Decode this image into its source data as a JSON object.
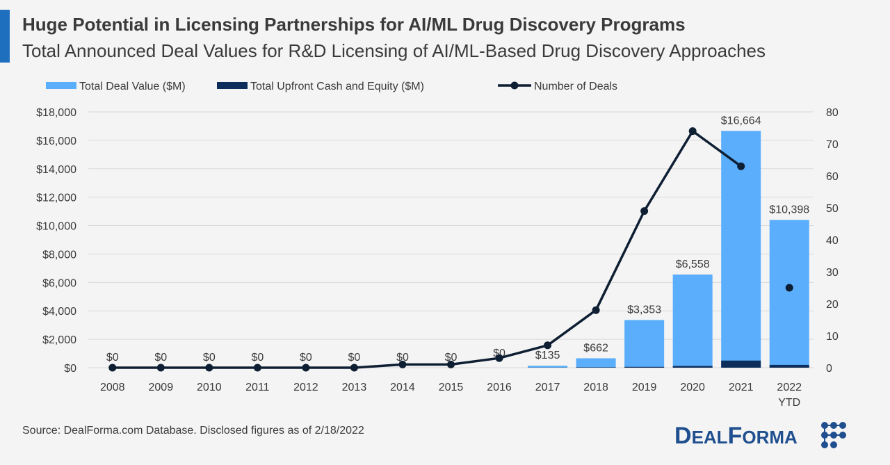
{
  "header": {
    "title": "Huge Potential in Licensing Partnerships for AI/ML Drug Discovery Programs",
    "subtitle": "Total Announced Deal Values for R&D Licensing of AI/ML-Based Drug Discovery Approaches"
  },
  "colors": {
    "light_bar": "#5aaefc",
    "dark_bar": "#0d2d5a",
    "line": "#0e1f33",
    "accent": "#1f6fbf",
    "grid": "#d9d9d9"
  },
  "chart_data": {
    "type": "bar",
    "categories": [
      "2008",
      "2009",
      "2010",
      "2011",
      "2012",
      "2013",
      "2014",
      "2015",
      "2016",
      "2017",
      "2018",
      "2019",
      "2020",
      "2021",
      "2022"
    ],
    "category_sublabels": [
      "",
      "",
      "",
      "",
      "",
      "",
      "",
      "",
      "",
      "",
      "",
      "",
      "",
      "",
      "YTD"
    ],
    "series": [
      {
        "name": "Total Deal Value ($M)",
        "type": "bar",
        "axis": "left",
        "values": [
          0,
          0,
          0,
          0,
          0,
          0,
          0,
          0,
          0,
          135,
          662,
          3353,
          6558,
          16664,
          10398
        ]
      },
      {
        "name": "Total Upfront Cash and Equity ($M)",
        "type": "bar",
        "axis": "left",
        "values": [
          0,
          0,
          0,
          0,
          0,
          0,
          0,
          0,
          0,
          10,
          30,
          60,
          120,
          500,
          200
        ]
      },
      {
        "name": "Number of Deals",
        "type": "line",
        "axis": "right",
        "values": [
          0,
          0,
          0,
          0,
          0,
          0,
          1,
          1,
          3,
          7,
          18,
          49,
          74,
          63,
          25
        ],
        "connected_until_index": 13
      }
    ],
    "data_labels": [
      "$0",
      "$0",
      "$0",
      "$0",
      "$0",
      "$0",
      "$0",
      "$0",
      "$0",
      "$135",
      "$662",
      "$3,353",
      "$6,558",
      "$16,664",
      "$10,398"
    ],
    "ylim_left": [
      0,
      18000
    ],
    "yticks_left": [
      "$0",
      "$2,000",
      "$4,000",
      "$6,000",
      "$8,000",
      "$10,000",
      "$12,000",
      "$14,000",
      "$16,000",
      "$18,000"
    ],
    "ylim_right": [
      0,
      80
    ],
    "yticks_right": [
      "0",
      "10",
      "20",
      "30",
      "40",
      "50",
      "60",
      "70",
      "80"
    ],
    "legend": [
      {
        "label": "Total Deal Value ($M)",
        "kind": "bar-light"
      },
      {
        "label": "Total Upfront Cash and Equity ($M)",
        "kind": "bar-dark"
      },
      {
        "label": "Number of Deals",
        "kind": "line"
      }
    ],
    "legend_position": "top-left",
    "grid": true
  },
  "footer": {
    "source": "Source: DealForma.com Database. Disclosed figures as of 2/18/2022",
    "brand_big1": "D",
    "brand_small1": "EAL",
    "brand_big2": "F",
    "brand_small2": "ORMA"
  }
}
